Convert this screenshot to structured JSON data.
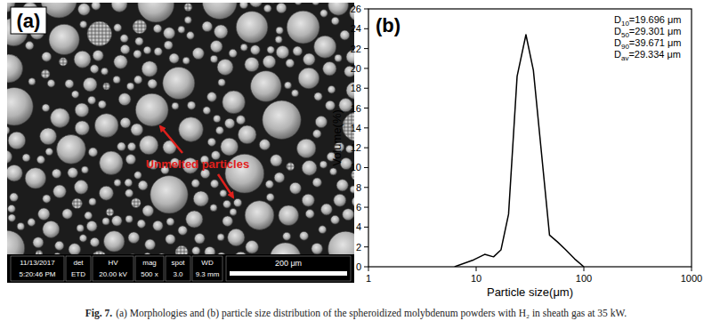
{
  "figure_caption": {
    "label": "Fig. 7.",
    "text": "(a) Morphologies and (b) particle size distribution of the spheroidized molybdenum powders with H₂ in sheath gas at 35 kW."
  },
  "image_panel": {
    "label": "(a)",
    "annotation": "Unmelted particles",
    "info_bar": {
      "headers": [
        "11/13/2017",
        "det",
        "HV",
        "mag",
        "spot",
        "WD"
      ],
      "values": [
        "5:20:46 PM",
        "ETD",
        "20.00 kV",
        "500 x",
        "3.0",
        "9.3 mm"
      ]
    },
    "scale_bar": "200 μm"
  },
  "chart_data": {
    "type": "line",
    "title": "(b)",
    "x_label": "Particle size(μm)",
    "y_label": "Volume(%)",
    "x": [
      6.3,
      9.5,
      12,
      14.5,
      17,
      20,
      24,
      29,
      34,
      48,
      57,
      68,
      82,
      100
    ],
    "values": [
      0,
      0.7,
      1.25,
      1.0,
      1.7,
      5.3,
      19.2,
      23.4,
      19.8,
      3.2,
      2.5,
      1.7,
      0.8,
      0
    ],
    "color": "#000000",
    "xlim": [
      1,
      1000
    ],
    "xticks": [
      1,
      10,
      100,
      1000
    ],
    "ylim": [
      0,
      26
    ],
    "yticks": [
      0,
      2,
      4,
      6,
      8,
      10,
      12,
      14,
      16,
      18,
      20,
      22,
      24,
      26
    ],
    "log": "x",
    "grid": false,
    "annotations": [
      {
        "label": "D",
        "subscript": "10",
        "text": "=19.696 μm"
      },
      {
        "label": "D",
        "subscript": "50",
        "text": "=29.301 μm"
      },
      {
        "label": "D",
        "subscript": "90",
        "text": "=39.671 μm"
      },
      {
        "label": "D",
        "subscript": "av",
        "text": "=29.334 μm"
      }
    ]
  }
}
